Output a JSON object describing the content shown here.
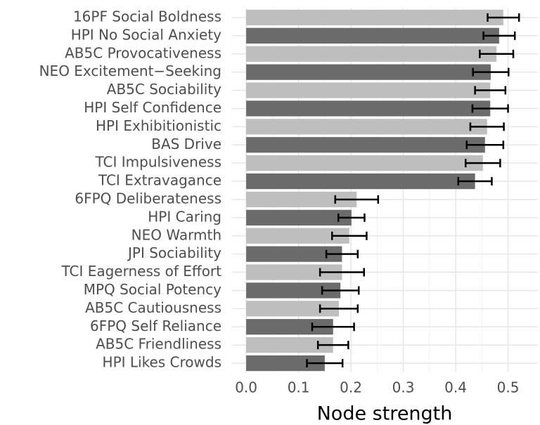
{
  "chart_data": {
    "type": "bar",
    "orientation": "horizontal",
    "x_label": "Node strength",
    "categories": [
      "16PF Social Boldness",
      "HPI No Social Anxiety",
      "AB5C Provocativeness",
      "NEO Excitement−Seeking",
      "AB5C Sociability",
      "HPI Self Confidence",
      "HPI Exhibitionistic",
      "BAS Drive",
      "TCI Impulsiveness",
      "TCI Extravagance",
      "6FPQ Deliberateness",
      "HPI Caring",
      "NEO Warmth",
      "JPI Sociability",
      "TCI Eagerness of Effort",
      "MPQ Social Potency",
      "AB5C Cautiousness",
      "6FPQ Self Reliance",
      "AB5C Friendliness",
      "HPI Likes Crowds"
    ],
    "values": [
      0.491,
      0.483,
      0.478,
      0.467,
      0.466,
      0.466,
      0.46,
      0.456,
      0.452,
      0.437,
      0.211,
      0.201,
      0.197,
      0.183,
      0.183,
      0.18,
      0.177,
      0.166,
      0.166,
      0.15
    ],
    "errors": [
      0.03,
      0.03,
      0.032,
      0.034,
      0.029,
      0.034,
      0.032,
      0.035,
      0.033,
      0.032,
      0.041,
      0.025,
      0.033,
      0.03,
      0.042,
      0.035,
      0.036,
      0.04,
      0.029,
      0.034
    ],
    "colors": [
      "#bebebe",
      "#6b6b6b"
    ],
    "error_color": "#000000",
    "xlim": [
      -0.027,
      0.557
    ],
    "xticks": [
      {
        "value": 0,
        "label": "0.0"
      },
      0.1,
      0.2,
      0.3,
      0.4,
      0.5
    ],
    "grid": true
  }
}
